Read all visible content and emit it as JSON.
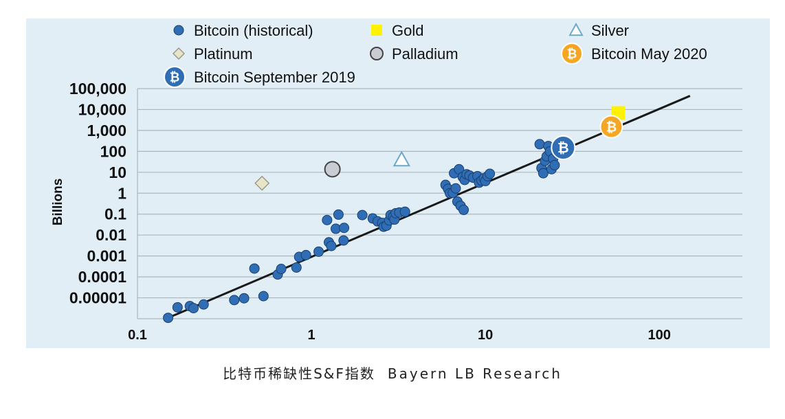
{
  "chart_data": {
    "type": "scatter",
    "x_scale": "log",
    "y_scale": "log",
    "xlim": [
      0.1,
      300
    ],
    "ylim": [
      1e-06,
      100000
    ],
    "grid": true,
    "ylabel": "Billions",
    "xlabel": "",
    "x_ticks": [
      {
        "value": 0.1,
        "label": "0.1"
      },
      {
        "value": 1,
        "label": "1"
      },
      {
        "value": 10,
        "label": "10"
      },
      {
        "value": 100,
        "label": "100"
      }
    ],
    "y_ticks": [
      {
        "value": 100000,
        "label": "100,000"
      },
      {
        "value": 10000,
        "label": "10,000"
      },
      {
        "value": 1000,
        "label": "1,000"
      },
      {
        "value": 100,
        "label": "100"
      },
      {
        "value": 10,
        "label": "10"
      },
      {
        "value": 1,
        "label": "1"
      },
      {
        "value": 0.1,
        "label": "0.1"
      },
      {
        "value": 0.01,
        "label": "0.01"
      },
      {
        "value": 0.001,
        "label": "0.001"
      },
      {
        "value": 0.0001,
        "label": "0.0001"
      },
      {
        "value": 1e-05,
        "label": "0.00001"
      }
    ],
    "legend": {
      "placement": "top",
      "entries": [
        {
          "label": "Bitcoin (historical)",
          "marker": "circle",
          "color": "#2f6db5"
        },
        {
          "label": "Gold",
          "marker": "square",
          "color": "#fff200"
        },
        {
          "label": "Silver",
          "marker": "triangle",
          "color": "#6aa9c9"
        },
        {
          "label": "Platinum",
          "marker": "diamond",
          "color": "#e8e4c8"
        },
        {
          "label": "Palladium",
          "marker": "circle-large",
          "color": "#c9ccd2"
        },
        {
          "label": "Bitcoin May 2020",
          "marker": "bitcoin-coin",
          "color": "#f5a623"
        },
        {
          "label": "Bitcoin September 2019",
          "marker": "bitcoin-coin",
          "color": "#2f6db5"
        }
      ]
    },
    "series": [
      {
        "name": "Bitcoin (historical)",
        "color": "#2f6db5",
        "points": [
          [
            0.15,
            1.1e-06
          ],
          [
            0.17,
            3.5e-06
          ],
          [
            0.2,
            4e-06
          ],
          [
            0.21,
            3.2e-06
          ],
          [
            0.24,
            4.8e-06
          ],
          [
            0.36,
            7.8e-06
          ],
          [
            0.41,
            9.5e-06
          ],
          [
            0.47,
            0.00025
          ],
          [
            0.53,
            1.2e-05
          ],
          [
            0.64,
            0.00013
          ],
          [
            0.67,
            0.00024
          ],
          [
            0.82,
            0.00028
          ],
          [
            0.85,
            0.0009
          ],
          [
            0.93,
            0.0011
          ],
          [
            1.1,
            0.0016
          ],
          [
            1.23,
            0.052
          ],
          [
            1.26,
            0.0045
          ],
          [
            1.3,
            0.003
          ],
          [
            1.38,
            0.02
          ],
          [
            1.43,
            0.095
          ],
          [
            1.53,
            0.0055
          ],
          [
            1.54,
            0.022
          ],
          [
            1.96,
            0.09
          ],
          [
            2.25,
            0.062
          ],
          [
            2.4,
            0.045
          ],
          [
            2.55,
            0.038
          ],
          [
            2.6,
            0.025
          ],
          [
            2.7,
            0.028
          ],
          [
            2.8,
            0.05
          ],
          [
            2.85,
            0.09
          ],
          [
            2.95,
            0.075
          ],
          [
            3.0,
            0.055
          ],
          [
            3.05,
            0.11
          ],
          [
            3.2,
            0.12
          ],
          [
            3.45,
            0.13
          ],
          [
            5.9,
            2.5
          ],
          [
            6.1,
            1.6
          ],
          [
            6.25,
            1.0
          ],
          [
            6.5,
            1.05
          ],
          [
            6.6,
            9
          ],
          [
            6.75,
            1.7
          ],
          [
            6.9,
            0.4
          ],
          [
            7.05,
            14
          ],
          [
            7.2,
            0.25
          ],
          [
            7.4,
            6
          ],
          [
            7.5,
            0.16
          ],
          [
            7.6,
            4.3
          ],
          [
            7.8,
            8
          ],
          [
            8.1,
            7
          ],
          [
            8.5,
            5.5
          ],
          [
            9.0,
            6.5
          ],
          [
            9.2,
            3.2
          ],
          [
            9.5,
            4
          ],
          [
            9.8,
            5.2
          ],
          [
            10.0,
            3.8
          ],
          [
            10.3,
            6.5
          ],
          [
            10.6,
            8.5
          ],
          [
            20.5,
            220
          ],
          [
            21,
            16
          ],
          [
            21.5,
            9
          ],
          [
            22,
            35
          ],
          [
            22.5,
            58
          ],
          [
            23,
            180
          ],
          [
            23.5,
            100
          ],
          [
            24,
            14
          ],
          [
            24.5,
            45
          ],
          [
            25,
            22
          ],
          [
            26,
            80
          ]
        ]
      },
      {
        "name": "Gold",
        "color": "#fff200",
        "points": [
          [
            58,
            6800
          ]
        ]
      },
      {
        "name": "Silver",
        "color": "#6aa9c9",
        "points": [
          [
            3.3,
            40
          ]
        ]
      },
      {
        "name": "Platinum",
        "color": "#e8e4c8",
        "points": [
          [
            0.52,
            3
          ]
        ]
      },
      {
        "name": "Palladium",
        "color": "#c9ccd2",
        "points": [
          [
            1.32,
            14
          ]
        ]
      },
      {
        "name": "Bitcoin May 2020",
        "color": "#f5a623",
        "points": [
          [
            53,
            1500
          ]
        ]
      },
      {
        "name": "Bitcoin September 2019",
        "color": "#2f6db5",
        "points": [
          [
            28,
            150
          ]
        ]
      }
    ],
    "trendline": {
      "from": [
        0.15,
        1.1e-06
      ],
      "to": [
        150,
        45000
      ],
      "color": "#1a1a1a"
    }
  },
  "caption": {
    "chinese": "比特币稀缺性S&F指数",
    "source": "Bayern LB Research"
  },
  "bitcoin_glyph": "₿"
}
